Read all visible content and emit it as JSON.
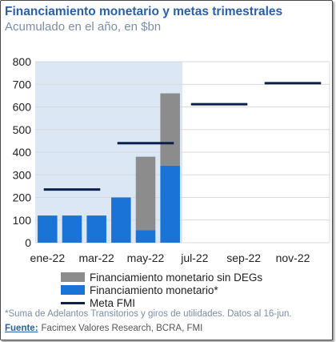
{
  "title": "Financiamiento monetario y metas trimestrales",
  "subtitle": "Acumulado en el año, en $bn",
  "chart_data": {
    "type": "bar",
    "categories": [
      "ene-22",
      "feb-22",
      "mar-22",
      "abr-22",
      "may-22",
      "jun-22",
      "jul-22",
      "ago-22",
      "sep-22",
      "oct-22",
      "nov-22",
      "dic-22"
    ],
    "tick_labels": [
      "ene-22",
      "",
      "mar-22",
      "",
      "may-22",
      "",
      "jul-22",
      "",
      "sep-22",
      "",
      "nov-22",
      ""
    ],
    "series": [
      {
        "name": "Financiamiento monetario*",
        "kind": "bar-stacked",
        "values": [
          120,
          120,
          120,
          200,
          55,
          340,
          null,
          null,
          null,
          null,
          null,
          null
        ],
        "color": "#1a73d6"
      },
      {
        "name": "Financiamiento monetario sin DEGs",
        "kind": "bar-stacked",
        "values": [
          0,
          0,
          0,
          0,
          325,
          320,
          null,
          null,
          null,
          null,
          null,
          null
        ],
        "color": "#8c8c8c"
      },
      {
        "name": "Meta FMI",
        "kind": "segments",
        "segments": [
          {
            "from": "ene-22",
            "to": "mar-22",
            "value": 235
          },
          {
            "from": "abr-22",
            "to": "jun-22",
            "value": 440
          },
          {
            "from": "jul-22",
            "to": "sep-22",
            "value": 612
          },
          {
            "from": "oct-22",
            "to": "dic-22",
            "value": 705
          }
        ],
        "color": "#0b1f4d"
      }
    ],
    "yticks": [
      0,
      100,
      200,
      300,
      400,
      500,
      600,
      700,
      800
    ],
    "ylim": [
      0,
      800
    ],
    "grid": true,
    "shaded_period": {
      "from": "ene-22",
      "to": "jun-22"
    },
    "legend_position": "bottom"
  },
  "legend": [
    {
      "label": "Financiamiento monetario sin DEGs",
      "color": "#8c8c8c",
      "kind": "box"
    },
    {
      "label": "Financiamiento monetario*",
      "color": "#1a73d6",
      "kind": "box"
    },
    {
      "label": "Meta FMI",
      "color": "#0b1f4d",
      "kind": "line"
    }
  ],
  "footnote": "*Suma de Adelantos Transitorios y giros de utilidades. Datos al 16-jun.",
  "source": {
    "label": "Fuente:",
    "text": "Facimex Valores Research, BCRA, FMI"
  }
}
